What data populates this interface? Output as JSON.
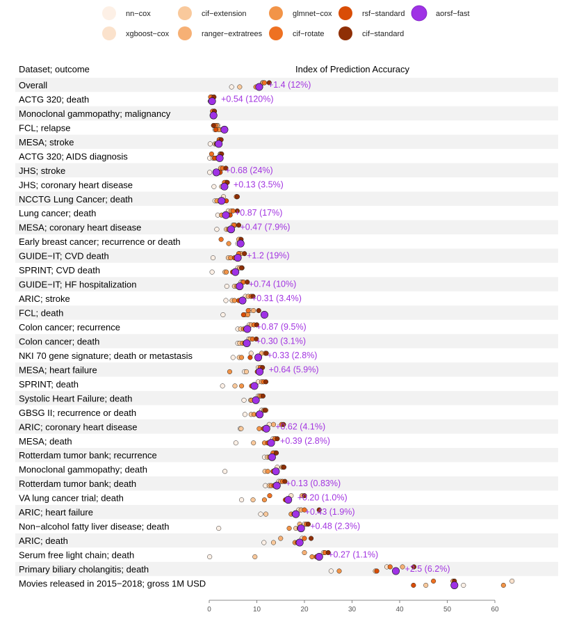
{
  "chart_data": {
    "type": "scatter",
    "title": "",
    "ylabel_header": "Dataset; outcome",
    "xlabel": "Index of Prediction Accuracy",
    "xlim": [
      0,
      64
    ],
    "xticks": [
      0,
      10,
      20,
      30,
      40,
      50,
      60
    ],
    "legend": [
      {
        "name": "nn−cox",
        "color": "#fdf0e6"
      },
      {
        "name": "cif−extension",
        "color": "#f9c99c"
      },
      {
        "name": "glmnet−cox",
        "color": "#f29448"
      },
      {
        "name": "rsf−standard",
        "color": "#d94d06"
      },
      {
        "name": "aorsf−fast",
        "color": "#9f32e5"
      },
      {
        "name": "xgboost−cox",
        "color": "#fbe2cc"
      },
      {
        "name": "ranger−extratrees",
        "color": "#f6b075"
      },
      {
        "name": "cif−rotate",
        "color": "#ee7122"
      },
      {
        "name": "cif−standard",
        "color": "#8f2f06"
      }
    ],
    "rows": [
      {
        "label": "Overall",
        "annotation": "+1.4 (12%)",
        "values": [
          4.7,
          6.4,
          9.8,
          10.8,
          10.5,
          11.2,
          11.3,
          11.6,
          12.6
        ]
      },
      {
        "label": "ACTG 320; death",
        "annotation": "+0.54 (120%)",
        "values": [
          0.2,
          0.3,
          0.5,
          0.4,
          0.6,
          0.45,
          0.5,
          0.3,
          1.0
        ]
      },
      {
        "label": "Monoclonal gammopathy; malignancy",
        "annotation": "",
        "values": [
          0.7,
          0.9,
          1.0,
          0.8,
          0.9,
          1.1,
          0.9,
          0.7,
          1.1
        ]
      },
      {
        "label": "FCL; relapse",
        "annotation": "",
        "values": [
          1.2,
          2.5,
          2.0,
          1.4,
          3.2,
          1.8,
          1.6,
          1.3,
          0.9
        ]
      },
      {
        "label": "MESA; stroke",
        "annotation": "",
        "values": [
          0.2,
          1.2,
          1.5,
          1.6,
          2.0,
          2.1,
          2.3,
          2.1,
          2.5
        ]
      },
      {
        "label": "ACTG 320; AIDS diagnosis",
        "annotation": "",
        "values": [
          0.1,
          0.8,
          1.5,
          1.1,
          2.2,
          2.3,
          2.4,
          0.5,
          2.6
        ]
      },
      {
        "label": "JHS; stroke",
        "annotation": "+0.68 (24%)",
        "values": [
          0.1,
          1.8,
          2.2,
          2.3,
          1.5,
          2.6,
          2.4,
          2.8,
          3.5
        ]
      },
      {
        "label": "JHS; coronary heart disease",
        "annotation": "+0.13 (3.5%)",
        "values": [
          1.0,
          2.6,
          3.0,
          3.4,
          3.2,
          3.5,
          3.6,
          3.2,
          3.8
        ]
      },
      {
        "label": "NCCTG Lung Cancer; death",
        "annotation": "",
        "values": [
          1.2,
          2.0,
          1.6,
          3.6,
          2.6,
          3.0,
          5.8,
          5.7,
          5.9
        ]
      },
      {
        "label": "Lung cancer; death",
        "annotation": "+0.87 (17%)",
        "values": [
          1.8,
          3.3,
          2.6,
          4.4,
          3.5,
          4.0,
          4.6,
          5.0,
          5.9
        ]
      },
      {
        "label": "MESA; coronary heart disease",
        "annotation": "+0.47 (7.9%)",
        "values": [
          1.6,
          3.6,
          4.0,
          4.3,
          4.6,
          5.0,
          5.4,
          5.2,
          6.2
        ]
      },
      {
        "label": "Early breast cancer; recurrence or death",
        "annotation": "",
        "values": [
          6.0,
          6.3,
          4.1,
          6.4,
          6.6,
          6.5,
          6.2,
          2.5,
          6.7
        ]
      },
      {
        "label": "GUIDE−IT; CVD death",
        "annotation": "+1.2 (19%)",
        "values": [
          0.8,
          4.0,
          4.5,
          5.3,
          6.0,
          6.3,
          6.7,
          6.2,
          7.4
        ]
      },
      {
        "label": "SPRINT; CVD death",
        "annotation": "",
        "values": [
          0.6,
          3.3,
          3.6,
          4.9,
          5.5,
          6.0,
          6.4,
          6.9,
          6.8
        ]
      },
      {
        "label": "GUIDE−IT; HF hospitalization",
        "annotation": "+0.74 (10%)",
        "values": [
          3.7,
          5.3,
          5.8,
          6.1,
          6.4,
          6.7,
          7.0,
          7.2,
          8.0
        ]
      },
      {
        "label": "ARIC; stroke",
        "annotation": "+0.31 (3.4%)",
        "values": [
          3.5,
          4.8,
          5.3,
          6.2,
          7.0,
          7.6,
          8.2,
          8.8,
          9.2
        ]
      },
      {
        "label": "FCL; death",
        "annotation": "",
        "values": [
          2.9,
          7.6,
          8.1,
          7.2,
          11.6,
          8.6,
          9.3,
          8.2,
          10.4
        ]
      },
      {
        "label": "Colon cancer; recurrence",
        "annotation": "+0.87 (9.5%)",
        "values": [
          6.0,
          6.6,
          7.2,
          7.6,
          8.0,
          8.4,
          8.8,
          9.4,
          10.0
        ]
      },
      {
        "label": "Colon cancer; death",
        "annotation": "+0.30 (3.1%)",
        "values": [
          6.0,
          6.4,
          7.0,
          7.5,
          7.9,
          8.3,
          8.6,
          9.1,
          9.9
        ]
      },
      {
        "label": "NKI 70 gene signature; death or metastasis",
        "annotation": "+0.33 (2.8%)",
        "values": [
          5.0,
          6.3,
          6.8,
          8.6,
          10.3,
          8.8,
          11.0,
          11.8,
          12.0
        ]
      },
      {
        "label": "MESA; heart failure",
        "annotation": "+0.64 (5.9%)",
        "values": [
          7.4,
          7.8,
          4.3,
          10.1,
          10.6,
          10.3,
          10.9,
          10.7,
          11.2
        ]
      },
      {
        "label": "SPRINT; death",
        "annotation": "",
        "values": [
          2.8,
          5.4,
          6.8,
          8.9,
          9.5,
          10.3,
          11.0,
          11.4,
          11.9
        ]
      },
      {
        "label": "Systolic Heart Failure; death",
        "annotation": "",
        "values": [
          7.3,
          8.7,
          8.9,
          9.6,
          9.8,
          10.3,
          10.6,
          10.9,
          11.3
        ]
      },
      {
        "label": "GBSG II; recurrence or death",
        "annotation": "",
        "values": [
          7.5,
          8.8,
          9.4,
          10.2,
          10.6,
          11.0,
          11.5,
          11.9,
          11.7
        ]
      },
      {
        "label": "ARIC; coronary heart disease",
        "annotation": "+0.62 (4.1%)",
        "values": [
          6.5,
          6.7,
          10.5,
          11.4,
          12.0,
          12.6,
          13.5,
          15.2,
          15.6
        ]
      },
      {
        "label": "MESA; death",
        "annotation": "+0.39 (2.8%)",
        "values": [
          5.6,
          9.3,
          11.6,
          12.3,
          13.0,
          13.4,
          13.9,
          13.8,
          14.3
        ]
      },
      {
        "label": "Rotterdam tumor bank; recurrence",
        "annotation": "",
        "values": [
          11.6,
          12.2,
          12.6,
          12.9,
          13.2,
          13.6,
          13.9,
          13.4,
          14.1
        ]
      },
      {
        "label": "Monoclonal gammopathy; death",
        "annotation": "",
        "values": [
          3.3,
          11.7,
          12.3,
          13.4,
          14.0,
          14.3,
          15.3,
          15.6,
          15.7
        ]
      },
      {
        "label": "Rotterdam tumor bank; death",
        "annotation": "+0.13 (0.83%)",
        "values": [
          11.8,
          12.6,
          13.0,
          13.6,
          14.2,
          14.6,
          15.0,
          15.4,
          15.9
        ]
      },
      {
        "label": "VA lung cancer trial; death",
        "annotation": "+0.20 (1.0%)",
        "values": [
          6.8,
          9.2,
          11.6,
          16.0,
          16.6,
          17.2,
          19.5,
          12.7,
          20.0
        ]
      },
      {
        "label": "ARIC; heart failure",
        "annotation": "+0.43 (1.9%)",
        "values": [
          10.8,
          11.9,
          17.2,
          17.8,
          18.2,
          18.8,
          19.3,
          20.0,
          23.1
        ]
      },
      {
        "label": "Non−alcohol fatty liver disease; death",
        "annotation": "+0.48 (2.3%)",
        "values": [
          2.0,
          18.2,
          16.8,
          18.9,
          19.3,
          20.0,
          19.0,
          20.4,
          20.8
        ]
      },
      {
        "label": "ARIC; death",
        "annotation": "",
        "values": [
          11.5,
          13.5,
          18.0,
          18.5,
          19.0,
          19.5,
          15.0,
          20.0,
          21.4
        ]
      },
      {
        "label": "Serum free light chain; death",
        "annotation": "+0.27 (1.1%)",
        "values": [
          0.1,
          9.6,
          21.6,
          22.5,
          23.1,
          24.0,
          20.0,
          24.3,
          25.0
        ]
      },
      {
        "label": "Primary biliary cholangitis; death",
        "annotation": "+2.5 (6.2%)",
        "values": [
          25.6,
          34.9,
          27.3,
          35.2,
          39.2,
          37.3,
          40.6,
          38.0,
          43.0
        ]
      },
      {
        "label": "Movies released in 2015−2018; gross 1M USD",
        "annotation": "",
        "values": [
          53.4,
          45.5,
          61.8,
          42.9,
          51.5,
          63.6,
          51.2,
          47.1,
          51.5
        ]
      }
    ]
  }
}
